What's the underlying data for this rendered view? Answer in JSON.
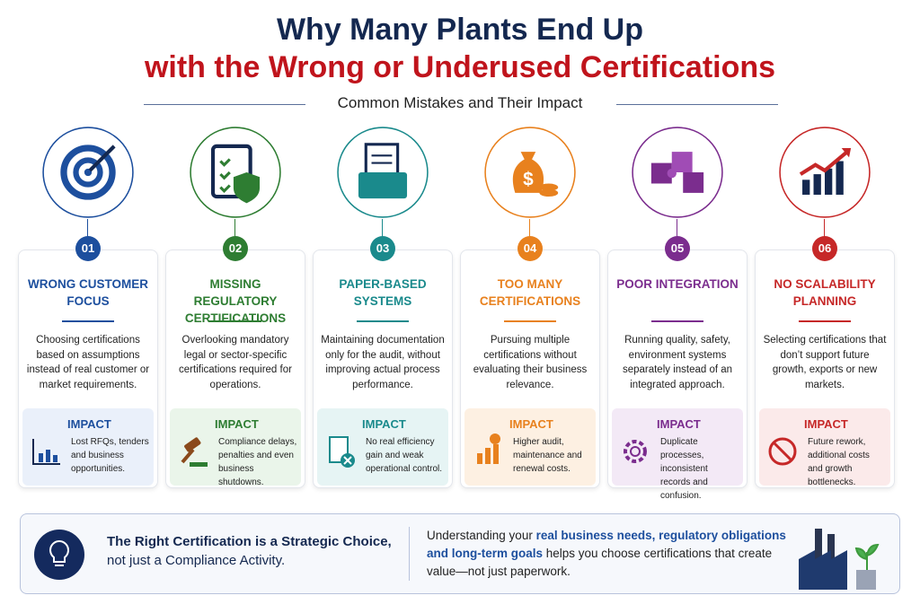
{
  "header": {
    "title_line1": "Why Many Plants End Up",
    "title_line2": "with the Wrong or Underused Certifications",
    "subtitle": "Common Mistakes and Their Impact"
  },
  "cards": [
    {
      "number": "01",
      "title": "WRONG CUSTOMER FOCUS",
      "color": "#1d4f9e",
      "description": "Choosing certifications based on assumptions instead of real customer or market requirements.",
      "impact_label": "IMPACT",
      "impact_text": "Lost RFQs, tenders and business opportunities."
    },
    {
      "number": "02",
      "title": "MISSING REGULATORY CERTIFICATIONS",
      "color": "#2e7d32",
      "description": "Overlooking mandatory legal or sector-specific certifications required for operations.",
      "impact_label": "IMPACT",
      "impact_text": "Compliance delays, penalties and even business shutdowns."
    },
    {
      "number": "03",
      "title": "PAPER-BASED SYSTEMS",
      "color": "#1a8a8c",
      "description": "Maintaining documentation only for the audit, without improving actual process performance.",
      "impact_label": "IMPACT",
      "impact_text": "No real efficiency gain and weak operational control."
    },
    {
      "number": "04",
      "title": "TOO MANY CERTIFICATIONS",
      "color": "#e8811e",
      "description": "Pursuing multiple certifications without evaluating their business relevance.",
      "impact_label": "IMPACT",
      "impact_text": "Higher audit, maintenance and renewal costs."
    },
    {
      "number": "05",
      "title": "POOR INTEGRATION",
      "color": "#7b2d8e",
      "description": "Running quality, safety, environment systems separately instead of an integrated approach.",
      "impact_label": "IMPACT",
      "impact_text": "Duplicate processes, inconsistent records and confusion."
    },
    {
      "number": "06",
      "title": "NO SCALABILITY PLANNING",
      "color": "#c62828",
      "description": "Selecting certifications that don’t support future growth, exports or new markets.",
      "impact_label": "IMPACT",
      "impact_text": "Future rework, additional costs and growth bottlenecks."
    }
  ],
  "footer": {
    "left_bold": "The Right Certification is a Strategic Choice,",
    "left_normal": "not just a Compliance Activity.",
    "right_segments": [
      {
        "text": "Understanding your ",
        "highlight": false
      },
      {
        "text": "real business needs, regulatory obligations and long-term goals",
        "highlight": true
      },
      {
        "text": " helps you choose certifications that create value—not just paperwork.",
        "highlight": false
      }
    ]
  }
}
